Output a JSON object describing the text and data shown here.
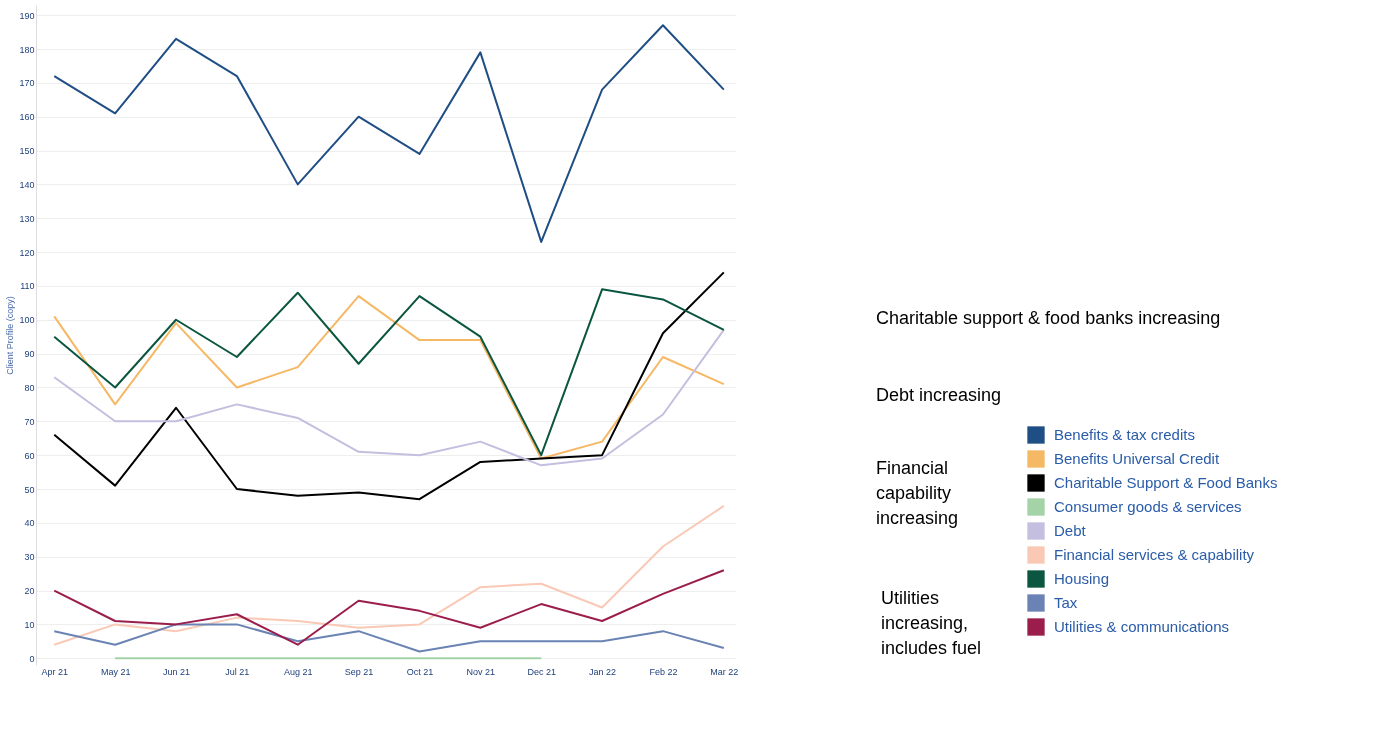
{
  "chart_data": {
    "type": "line",
    "ylabel": "Client Profile (copy)",
    "categories": [
      "Apr 21",
      "May 21",
      "Jun 21",
      "Jul 21",
      "Aug 21",
      "Sep 21",
      "Oct 21",
      "Nov 21",
      "Dec 21",
      "Jan 22",
      "Feb 22",
      "Mar 22"
    ],
    "series": [
      {
        "name": "Benefits & tax credits",
        "color": "#1f4e85",
        "values": [
          172,
          161,
          183,
          172,
          140,
          160,
          149,
          179,
          123,
          168,
          187,
          168
        ]
      },
      {
        "name": "Benefits Universal Credit",
        "color": "#f5b865",
        "values": [
          101,
          75,
          99,
          80,
          86,
          107,
          94,
          94,
          59,
          64,
          89,
          81
        ]
      },
      {
        "name": "Charitable Support & Food Banks",
        "color": "#000000",
        "values": [
          66,
          51,
          74,
          50,
          48,
          49,
          47,
          58,
          59,
          60,
          96,
          114
        ]
      },
      {
        "name": "Consumer goods & services",
        "color": "#a3d3a7",
        "values": [
          null,
          0,
          0,
          0,
          0,
          0,
          0,
          0,
          0,
          null,
          null,
          null
        ]
      },
      {
        "name": "Debt",
        "color": "#c4bedf",
        "values": [
          83,
          70,
          70,
          75,
          71,
          61,
          60,
          64,
          57,
          59,
          72,
          97
        ]
      },
      {
        "name": "Financial services & capability",
        "color": "#f9c9b5",
        "values": [
          4,
          10,
          8,
          12,
          11,
          9,
          10,
          21,
          22,
          15,
          33,
          45
        ]
      },
      {
        "name": "Housing",
        "color": "#0b5640",
        "values": [
          95,
          80,
          100,
          89,
          108,
          87,
          107,
          95,
          60,
          109,
          106,
          97
        ]
      },
      {
        "name": "Tax",
        "color": "#6a83b4",
        "values": [
          8,
          4,
          10,
          10,
          5,
          8,
          2,
          5,
          5,
          5,
          8,
          3
        ]
      },
      {
        "name": "Utilities & communications",
        "color": "#9b1d4c",
        "values": [
          20,
          11,
          10,
          13,
          4,
          17,
          14,
          9,
          16,
          11,
          19,
          26
        ]
      }
    ],
    "ylim": [
      -2,
      193
    ],
    "yticks": [
      0,
      10,
      20,
      30,
      40,
      50,
      60,
      70,
      80,
      90,
      100,
      110,
      120,
      130,
      140,
      150,
      160,
      170,
      180,
      190
    ],
    "grid": "y",
    "legend": "right",
    "line_style": "solid",
    "marker": "none",
    "annotations": [
      "Charitable support & food banks increasing",
      "Debt increasing",
      "Financial\ncapability\nincreasing",
      "Utilities\nincreasing,\nincludes fuel"
    ]
  }
}
